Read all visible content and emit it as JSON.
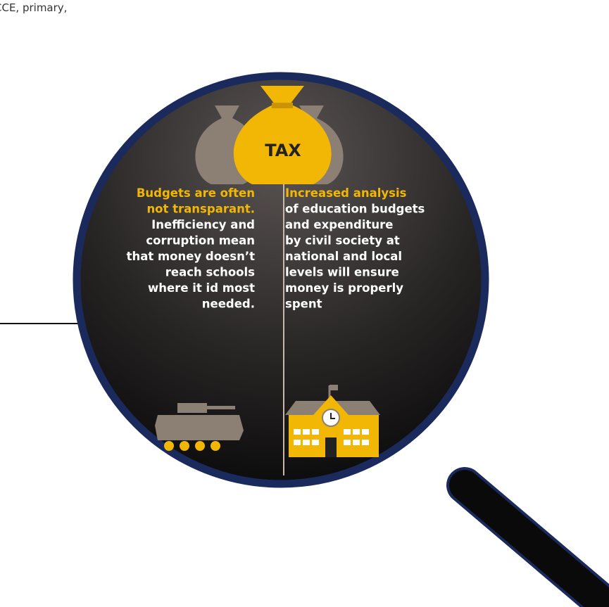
{
  "corner_text": "CCE, primary,",
  "bag_label": "TAX",
  "left": {
    "highlight": [
      "Budgets are often",
      "not transparant."
    ],
    "body": [
      "Inefficiency and",
      "corruption mean",
      "that money doesn’t",
      "reach schools",
      "where it id most",
      "needed."
    ]
  },
  "right": {
    "highlight": [
      "Increased analysis"
    ],
    "body": [
      "of education budgets",
      "and expenditure",
      "by civil society at",
      "national and local",
      "levels will ensure",
      "money is properly",
      "spent"
    ]
  }
}
